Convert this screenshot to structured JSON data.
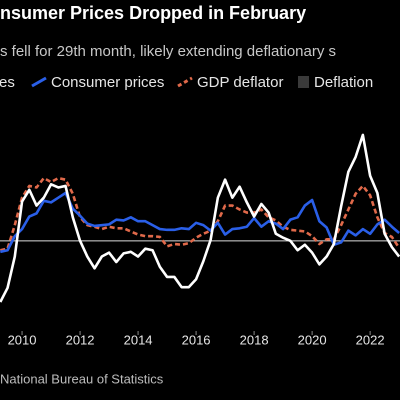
{
  "chart_data": {
    "type": "line",
    "title": "nsumer Prices Dropped in February",
    "subtitle": "s fell for 29th month, likely extending deflationary s",
    "source": "National Bureau of Statistics",
    "x": [
      2009.25,
      2009.5,
      2009.75,
      2010,
      2010.25,
      2010.5,
      2010.75,
      2011,
      2011.25,
      2011.5,
      2011.75,
      2012,
      2012.25,
      2012.5,
      2012.75,
      2013,
      2013.25,
      2013.5,
      2013.75,
      2014,
      2014.25,
      2014.5,
      2014.75,
      2015,
      2015.25,
      2015.5,
      2015.75,
      2016,
      2016.25,
      2016.5,
      2016.75,
      2017,
      2017.25,
      2017.5,
      2017.75,
      2018,
      2018.25,
      2018.5,
      2018.75,
      2019,
      2019.25,
      2019.5,
      2019.75,
      2020,
      2020.25,
      2020.5,
      2020.75,
      2021,
      2021.25,
      2021.5,
      2021.75,
      2022,
      2022.25,
      2022.5,
      2022.75,
      2023
    ],
    "xlim": [
      2009.24,
      2023.03
    ],
    "xticks": [
      2010,
      2012,
      2014,
      2016,
      2018,
      2020,
      2022
    ],
    "ylim": [
      -12,
      14
    ],
    "series": [
      {
        "name": "es",
        "color": "#ffffff",
        "dash": false,
        "values": [
          -7.8,
          -6,
          -2,
          5,
          6.5,
          4.5,
          5.5,
          7.2,
          6.8,
          7,
          3,
          0,
          -2,
          -3.5,
          -2,
          -1.5,
          -2.7,
          -1.6,
          -1.4,
          -2,
          -1,
          -1.2,
          -3.3,
          -4.6,
          -4.6,
          -5.9,
          -5.9,
          -4.9,
          -2.6,
          0.1,
          5.5,
          7.8,
          5.5,
          6.9,
          4.9,
          3.1,
          4.7,
          3.6,
          0.9,
          0.4,
          0,
          -1.2,
          -0.5,
          -1.5,
          -3,
          -2,
          -0.4,
          4.4,
          8.8,
          10.7,
          13.5,
          8.3,
          6.1,
          0.9,
          -0.8,
          -2
        ]
      },
      {
        "name": "Consumer prices",
        "color": "#2a5fe8",
        "dash": false,
        "values": [
          -1.4,
          -1.2,
          0.6,
          1.5,
          3.1,
          3.5,
          5.1,
          4.9,
          5.5,
          6.1,
          4.1,
          3.2,
          2.2,
          1.9,
          2.0,
          2.1,
          2.7,
          2.6,
          3.0,
          2.5,
          2.5,
          2.0,
          1.5,
          1.4,
          1.4,
          1.6,
          1.5,
          2.3,
          2.0,
          1.3,
          2.3,
          0.8,
          1.5,
          1.6,
          1.8,
          2.9,
          1.8,
          2.5,
          2.2,
          1.5,
          2.7,
          3.0,
          4.5,
          5.2,
          2.5,
          1.7,
          -0.5,
          -0.2,
          1.3,
          0.7,
          1.5,
          0.9,
          2.1,
          2.7,
          1.8,
          1.0
        ]
      },
      {
        "name": "GDP deflator",
        "color": "#e0694a",
        "dash": true,
        "values": [
          -1.2,
          -1,
          2,
          5.5,
          7,
          6.8,
          8,
          7.5,
          8,
          7.8,
          6,
          3,
          2,
          1.8,
          1.5,
          1.8,
          1.6,
          1.6,
          1.2,
          0.8,
          0.6,
          0.6,
          0.5,
          -0.7,
          -0.4,
          -0.5,
          -0.3,
          0.4,
          0.9,
          1.3,
          2.5,
          4.5,
          4.5,
          4,
          3.6,
          3.6,
          4,
          3,
          2.6,
          1.8,
          1.4,
          1.3,
          1.2,
          0.6,
          -0.4,
          0.2,
          0.2,
          2,
          4,
          6,
          7,
          5.8,
          3,
          1,
          0.5,
          -0.9
        ]
      }
    ],
    "legend_extra": {
      "name": "Deflation",
      "color": "#3a3a3a"
    }
  }
}
